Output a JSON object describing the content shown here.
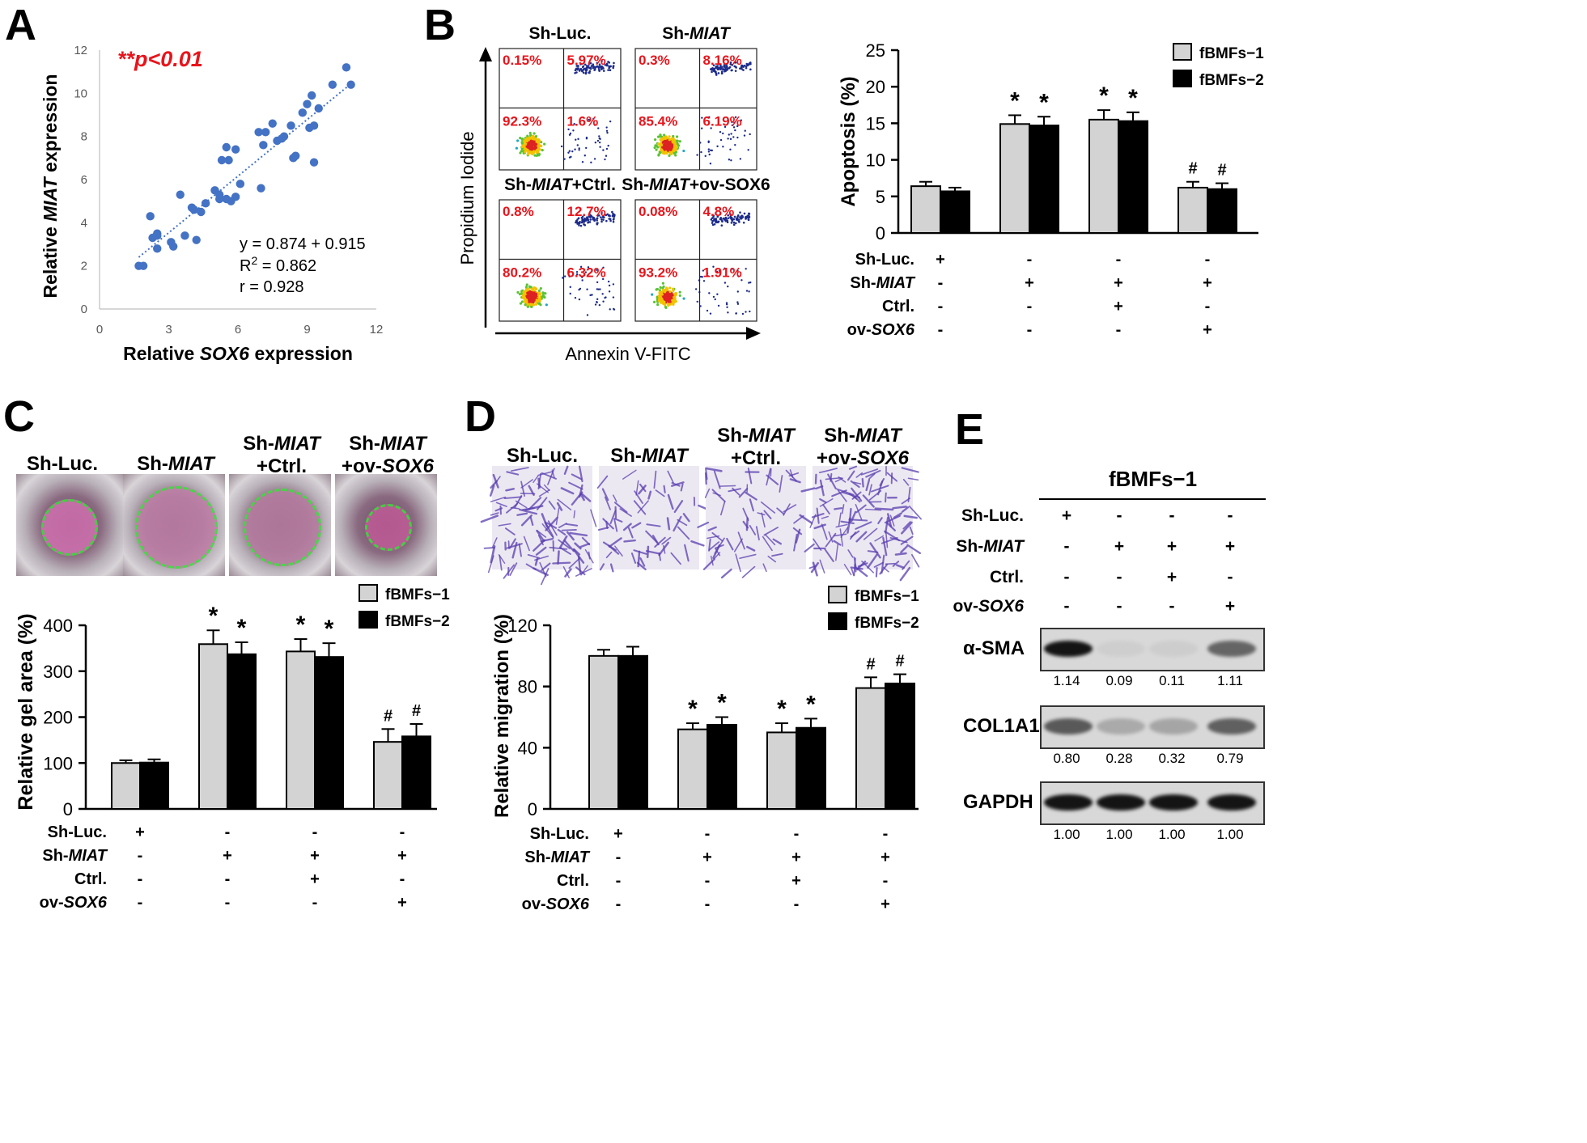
{
  "panels": {
    "a": "A",
    "b": "B",
    "c": "C",
    "d": "D",
    "e": "E"
  },
  "treat_labels": {
    "shluc": "Sh-Luc.",
    "shmiat_pre": "Sh-",
    "miat": "MIAT",
    "ctrl": "Ctrl.",
    "ov_pre": "ov-",
    "sox6": "SOX6",
    "plus_ctrl": "+Ctrl.",
    "plus_ov_pre": "+ov-",
    "plus": "+",
    "minus": "-"
  },
  "legend": {
    "s1": "fBMFs−1",
    "s2": "fBMFs−2"
  },
  "colors": {
    "s1": "#d3d3d3",
    "s2": "#000000",
    "red": "#e8141b",
    "dot": "#4472c4",
    "crystal": "#5a3fb0"
  },
  "chart_data": [
    {
      "type": "scatter",
      "title": "**p<0.01",
      "xlabel_pre": "Relative ",
      "xlabel_it": "SOX6",
      "xlabel_post": " expression",
      "ylabel_pre": "Relative ",
      "ylabel_it": "MIAT",
      "ylabel_post": " expression",
      "xlim": [
        0,
        12
      ],
      "ylim": [
        0,
        12
      ],
      "xticks": [
        "0",
        "3",
        "6",
        "9",
        "12"
      ],
      "yticks": [
        "0",
        "2",
        "4",
        "6",
        "8",
        "10",
        "12"
      ],
      "fit": {
        "slope": 0.874,
        "intercept": 0.915
      },
      "annot": {
        "eq": "y = 0.874 + 0.915",
        "r2_pre": "R",
        "r2_sup": "2",
        "r2_post": " = 0.862",
        "r": "r = 0.928"
      },
      "points": [
        [
          1.7,
          2
        ],
        [
          1.9,
          2
        ],
        [
          2.2,
          4.3
        ],
        [
          2.3,
          3.3
        ],
        [
          2.5,
          3.5
        ],
        [
          2.5,
          2.8
        ],
        [
          2.5,
          3.4
        ],
        [
          3.1,
          3.1
        ],
        [
          3.2,
          2.9
        ],
        [
          3.5,
          5.3
        ],
        [
          3.7,
          3.4
        ],
        [
          4.0,
          4.7
        ],
        [
          4.1,
          4.6
        ],
        [
          4.2,
          3.2
        ],
        [
          4.4,
          4.5
        ],
        [
          4.6,
          4.9
        ],
        [
          5.0,
          5.5
        ],
        [
          5.2,
          5.1
        ],
        [
          5.2,
          5.3
        ],
        [
          5.3,
          6.9
        ],
        [
          5.5,
          7.5
        ],
        [
          5.5,
          5.1
        ],
        [
          5.6,
          6.9
        ],
        [
          5.7,
          5.0
        ],
        [
          5.9,
          7.4
        ],
        [
          5.9,
          5.2
        ],
        [
          6.1,
          5.8
        ],
        [
          6.9,
          8.2
        ],
        [
          7.0,
          5.6
        ],
        [
          7.1,
          7.6
        ],
        [
          7.2,
          8.2
        ],
        [
          7.5,
          8.6
        ],
        [
          7.7,
          7.8
        ],
        [
          7.9,
          7.9
        ],
        [
          8.3,
          8.5
        ],
        [
          8.4,
          7.0
        ],
        [
          8.5,
          7.1
        ],
        [
          8.8,
          9.1
        ],
        [
          9.1,
          8.4
        ],
        [
          9.2,
          9.9
        ],
        [
          9.3,
          8.5
        ],
        [
          9.3,
          6.8
        ],
        [
          9.5,
          9.3
        ],
        [
          10.1,
          10.4
        ],
        [
          10.7,
          11.2
        ],
        [
          10.9,
          10.4
        ],
        [
          9.0,
          9.5
        ],
        [
          8.0,
          8.0
        ]
      ]
    },
    {
      "type": "flow_cytometry",
      "xlabel": "Annexin V-FITC",
      "ylabel": "Propidium Iodide",
      "plots": [
        {
          "title_pre": "Sh-Luc.",
          "title_it": "",
          "title_post": "",
          "q": [
            "0.15%",
            "5.97%",
            "92.3%",
            "1.6%"
          ]
        },
        {
          "title_pre": "Sh-",
          "title_it": "MIAT",
          "title_post": "",
          "q": [
            "0.3%",
            "8.16%",
            "85.4%",
            "6.19%"
          ]
        },
        {
          "title_pre": "Sh-",
          "title_it": "MIAT",
          "title_post": "+Ctrl.",
          "q": [
            "0.8%",
            "12.7%",
            "80.2%",
            "6.32%"
          ]
        },
        {
          "title_pre": "Sh-",
          "title_it": "MIAT",
          "title_post": "+ov-SOX6",
          "q": [
            "0.08%",
            "4.8%",
            "93.2%",
            "1.91%"
          ]
        }
      ]
    },
    {
      "type": "bar",
      "ylabel": "Apoptosis (%)",
      "ylim": [
        0,
        25
      ],
      "yticks": [
        "0",
        "5",
        "10",
        "15",
        "20",
        "25"
      ],
      "series": [
        {
          "name": "fBMFs−1",
          "values": [
            6.4,
            14.9,
            15.5,
            6.2
          ],
          "err": [
            0.6,
            1.2,
            1.3,
            0.8
          ]
        },
        {
          "name": "fBMFs−2",
          "values": [
            5.7,
            14.7,
            15.3,
            6.0
          ],
          "err": [
            0.5,
            1.2,
            1.2,
            0.8
          ]
        }
      ],
      "marks": [
        [
          "",
          ""
        ],
        [
          "*",
          "*"
        ],
        [
          "*",
          "*"
        ],
        [
          "#",
          "#"
        ]
      ],
      "treatments": [
        [
          "+",
          "-",
          "-",
          "-"
        ],
        [
          "-",
          "+",
          "+",
          "+"
        ],
        [
          "-",
          "-",
          "+",
          "-"
        ],
        [
          "-",
          "-",
          "-",
          "+"
        ]
      ]
    },
    {
      "type": "bar",
      "ylabel": "Relative gel area (%)",
      "ylim": [
        0,
        400
      ],
      "yticks": [
        "0",
        "100",
        "200",
        "300",
        "400"
      ],
      "series": [
        {
          "name": "fBMFs−1",
          "values": [
            100,
            359,
            343,
            146
          ],
          "err": [
            6,
            30,
            27,
            28
          ]
        },
        {
          "name": "fBMFs−2",
          "values": [
            101,
            337,
            331,
            158
          ],
          "err": [
            7,
            26,
            30,
            27
          ]
        }
      ],
      "marks": [
        [
          "",
          ""
        ],
        [
          "*",
          "*"
        ],
        [
          "*",
          "*"
        ],
        [
          "#",
          "#"
        ]
      ],
      "treatments": [
        [
          "+",
          "-",
          "-",
          "-"
        ],
        [
          "-",
          "+",
          "+",
          "+"
        ],
        [
          "-",
          "-",
          "+",
          "-"
        ],
        [
          "-",
          "-",
          "-",
          "+"
        ]
      ]
    },
    {
      "type": "bar",
      "ylabel": "Relative migration (%)",
      "ylim": [
        0,
        120
      ],
      "yticks": [
        "0",
        "40",
        "80",
        "120"
      ],
      "series": [
        {
          "name": "fBMFs−1",
          "values": [
            100,
            52,
            50,
            79
          ],
          "err": [
            4,
            4,
            6,
            7
          ]
        },
        {
          "name": "fBMFs−2",
          "values": [
            100,
            55,
            53,
            82
          ],
          "err": [
            6,
            5,
            6,
            6
          ]
        }
      ],
      "marks": [
        [
          "",
          ""
        ],
        [
          "*",
          "*"
        ],
        [
          "*",
          "*"
        ],
        [
          "#",
          "#"
        ]
      ],
      "treatments": [
        [
          "+",
          "-",
          "-",
          "-"
        ],
        [
          "-",
          "+",
          "+",
          "+"
        ],
        [
          "-",
          "-",
          "+",
          "-"
        ],
        [
          "-",
          "-",
          "-",
          "+"
        ]
      ]
    }
  ],
  "photos_c": [
    {
      "l1_pre": "Sh-Luc.",
      "l1_it": "",
      "l2_pre": "",
      "l2_it": ""
    },
    {
      "l1_pre": "Sh-",
      "l1_it": "MIAT",
      "l2_pre": "",
      "l2_it": ""
    },
    {
      "l1_pre": "Sh-",
      "l1_it": "MIAT",
      "l2_pre": "+Ctrl.",
      "l2_it": ""
    },
    {
      "l1_pre": "Sh-",
      "l1_it": "MIAT",
      "l2_pre": "+ov-",
      "l2_it": "SOX6"
    }
  ],
  "western": {
    "title": "fBMFs−1",
    "treatments": [
      [
        "+",
        "-",
        "-",
        "-"
      ],
      [
        "-",
        "+",
        "+",
        "+"
      ],
      [
        "-",
        "-",
        "+",
        "-"
      ],
      [
        "-",
        "-",
        "-",
        "+"
      ]
    ],
    "bands": [
      {
        "name": "α-SMA",
        "values": [
          "1.14",
          "0.09",
          "0.11",
          "1.11"
        ],
        "int": [
          1,
          0.05,
          0.06,
          0.7
        ]
      },
      {
        "name": "COL1A1",
        "values": [
          "0.80",
          "0.28",
          "0.32",
          "0.79"
        ],
        "int": [
          0.75,
          0.35,
          0.38,
          0.72
        ]
      },
      {
        "name": "GAPDH",
        "values": [
          "1.00",
          "1.00",
          "1.00",
          "1.00"
        ],
        "int": [
          1,
          1,
          1,
          1
        ]
      }
    ]
  }
}
